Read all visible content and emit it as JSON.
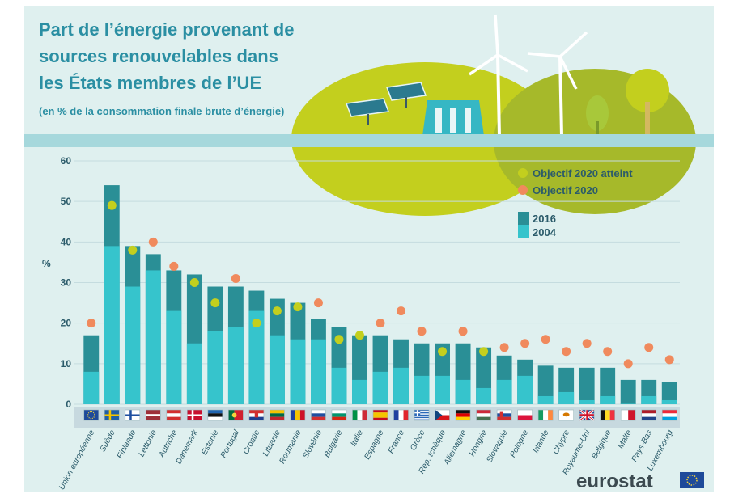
{
  "title_lines": [
    "Part de l’énergie provenant de",
    "sources renouvelables dans",
    "les États membres de l’UE"
  ],
  "subtitle": "(en % de la consommation finale brute d’énergie)",
  "brand": "eurostat",
  "colors": {
    "bar_2016": "#2a8f96",
    "bar_2004": "#36c4cc",
    "target_reached": "#c3cf1e",
    "target": "#f08a5d",
    "background": "#dff0ef",
    "band": "#a6d8dc",
    "title": "#2b8fa3"
  },
  "chart_data": {
    "type": "bar",
    "ylabel": "%",
    "ylim": [
      0,
      60
    ],
    "yticks": [
      0,
      10,
      20,
      30,
      40,
      50,
      60
    ],
    "grid": true,
    "legend_position": "top-right",
    "legend": {
      "reached": "Objectif 2020 atteint",
      "target": "Objectif 2020",
      "y2016": "2016",
      "y2004": "2004"
    },
    "categories": [
      "Union européenne",
      "Suède",
      "Finlande",
      "Lettonie",
      "Autriche",
      "Danemark",
      "Estonie",
      "Portugal",
      "Croatie",
      "Lituanie",
      "Roumanie",
      "Slovénie",
      "Bulgarie",
      "Italie",
      "Espagne",
      "France",
      "Grèce",
      "Rep. tchèque",
      "Allemagne",
      "Hongrie",
      "Slovaquie",
      "Pologne",
      "Irlande",
      "Chypre",
      "Royaume-Uni",
      "Belgique",
      "Malte",
      "Pays-Bas",
      "Luxembourg"
    ],
    "flags": [
      "eu",
      "se",
      "fi",
      "lv",
      "at",
      "dk",
      "ee",
      "pt",
      "hr",
      "lt",
      "ro",
      "si",
      "bg",
      "it",
      "es",
      "fr",
      "gr",
      "cz",
      "de",
      "hu",
      "sk",
      "pl",
      "ie",
      "cy",
      "gb",
      "be",
      "mt",
      "nl",
      "lu"
    ],
    "series": [
      {
        "name": "2016",
        "values": [
          17,
          54,
          39,
          37,
          33,
          32,
          29,
          29,
          28,
          26,
          25,
          21,
          19,
          17,
          17,
          16,
          15,
          15,
          15,
          14,
          12,
          11,
          9.5,
          9,
          9,
          9,
          6,
          6,
          5.4
        ]
      },
      {
        "name": "2004",
        "values": [
          8,
          39,
          29,
          33,
          23,
          15,
          18,
          19,
          23,
          17,
          16,
          16,
          9,
          6,
          8,
          9,
          7,
          7,
          6,
          4,
          6,
          7,
          2,
          3,
          1,
          2,
          0.1,
          2,
          1
        ]
      }
    ],
    "target_2020": [
      20,
      49,
      38,
      40,
      34,
      30,
      25,
      31,
      20,
      23,
      24,
      25,
      16,
      17,
      20,
      23,
      18,
      13,
      18,
      13,
      14,
      15,
      16,
      13,
      15,
      13,
      10,
      14,
      11
    ],
    "target_reached": [
      false,
      true,
      true,
      false,
      false,
      true,
      true,
      false,
      true,
      true,
      true,
      false,
      true,
      true,
      false,
      false,
      false,
      true,
      false,
      true,
      false,
      false,
      false,
      false,
      false,
      false,
      false,
      false,
      false
    ]
  }
}
